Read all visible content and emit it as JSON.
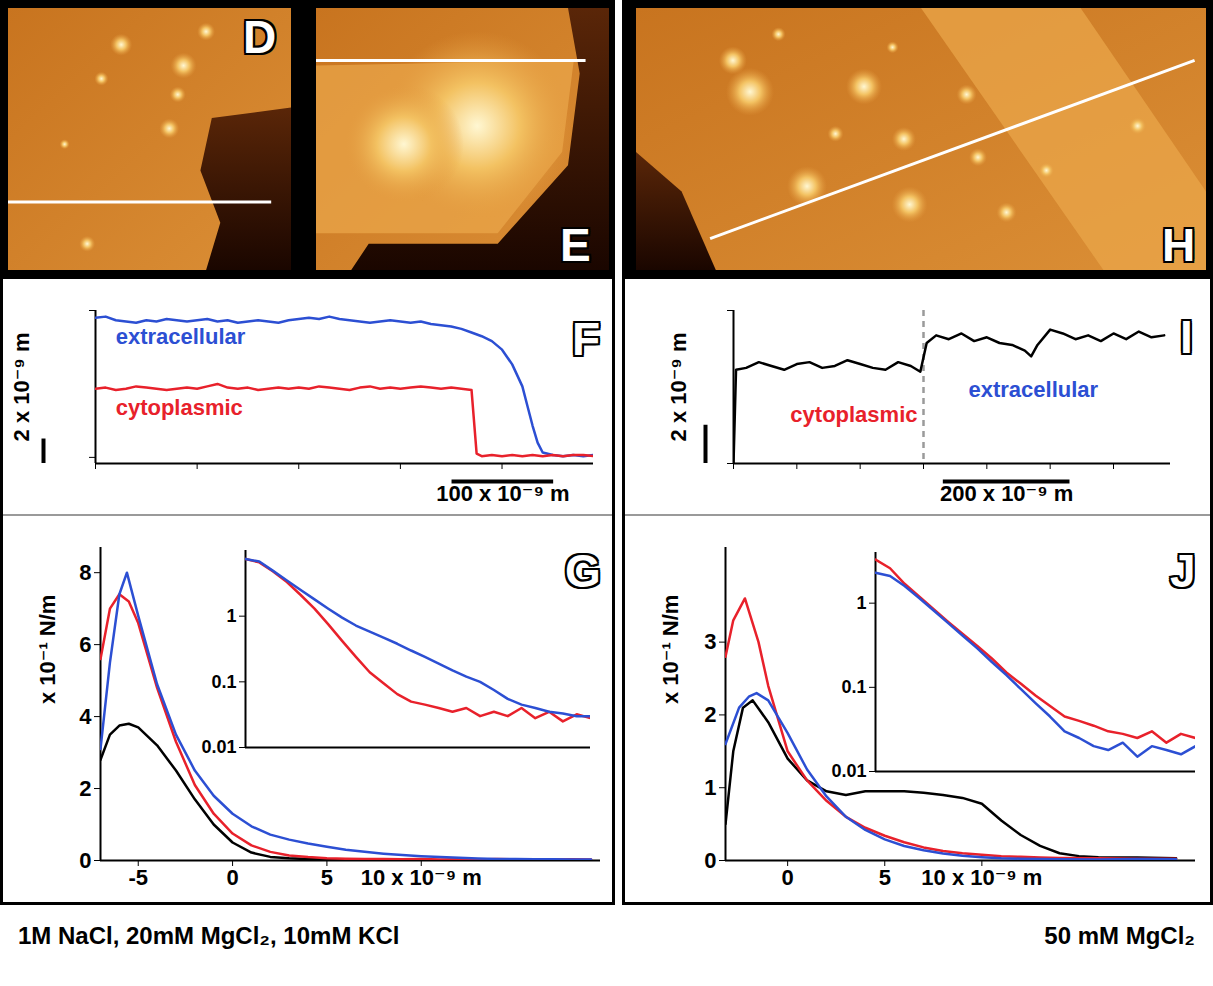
{
  "chart_data": [
    {
      "type": "image",
      "panel": "D"
    },
    {
      "type": "image",
      "panel": "E"
    },
    {
      "type": "image",
      "panel": "H"
    },
    {
      "type": "line",
      "panel": "F",
      "xlim": [
        0,
        490
      ],
      "xticks": [
        0,
        100,
        200,
        300,
        400
      ],
      "ylim": [
        -0.5,
        12
      ],
      "yticks": [
        0,
        12
      ],
      "tick_labels": false,
      "scale_bars": {
        "x": {
          "length": 100,
          "label": "100 x 10⁻⁹ m"
        },
        "y": {
          "length": 2,
          "label": "2 x 10⁻⁹ m"
        }
      },
      "series": [
        {
          "name": "extracellular",
          "color": "#2c4fd3",
          "x": [
            0,
            10,
            20,
            30,
            40,
            50,
            60,
            70,
            80,
            90,
            100,
            110,
            120,
            130,
            140,
            150,
            160,
            170,
            180,
            190,
            200,
            210,
            220,
            230,
            240,
            250,
            260,
            270,
            280,
            290,
            300,
            310,
            320,
            330,
            340,
            350,
            360,
            370,
            380,
            390,
            400,
            410,
            420,
            425,
            430,
            435,
            440,
            450,
            460,
            470,
            480,
            490
          ],
          "values": [
            11.4,
            11.5,
            11.2,
            11.1,
            11.0,
            11.2,
            11.1,
            11.3,
            11.2,
            11.1,
            11.2,
            11.3,
            11.1,
            11.2,
            11.0,
            11.1,
            11.2,
            11.1,
            11.0,
            11.2,
            11.3,
            11.4,
            11.3,
            11.5,
            11.3,
            11.2,
            11.1,
            11.0,
            11.1,
            11.2,
            11.1,
            11.0,
            11.1,
            10.9,
            10.8,
            10.7,
            10.5,
            10.2,
            9.9,
            9.5,
            8.8,
            7.6,
            5.8,
            4.2,
            2.6,
            1.2,
            0.4,
            0.2,
            0.1,
            0.2,
            0.1,
            0.2
          ]
        },
        {
          "name": "cytoplasmic",
          "color": "#e8212b",
          "x": [
            0,
            10,
            20,
            30,
            40,
            50,
            60,
            70,
            80,
            90,
            100,
            110,
            120,
            130,
            140,
            150,
            160,
            170,
            180,
            190,
            200,
            210,
            220,
            230,
            240,
            250,
            260,
            270,
            280,
            290,
            300,
            310,
            320,
            330,
            340,
            350,
            360,
            370,
            375,
            380,
            390,
            400,
            410,
            420,
            430,
            440,
            450,
            460,
            470,
            480,
            490
          ],
          "values": [
            5.6,
            5.7,
            5.5,
            5.6,
            5.8,
            5.7,
            5.6,
            5.5,
            5.6,
            5.7,
            5.6,
            5.8,
            6.0,
            5.7,
            5.6,
            5.7,
            5.5,
            5.6,
            5.7,
            5.6,
            5.7,
            5.6,
            5.8,
            5.7,
            5.6,
            5.5,
            5.7,
            5.8,
            5.6,
            5.7,
            5.6,
            5.7,
            5.8,
            5.7,
            5.6,
            5.7,
            5.6,
            5.5,
            0.3,
            0.1,
            0.2,
            0.1,
            0.2,
            0.1,
            0.2,
            0.1,
            0.2,
            0.1,
            0.2,
            0.2,
            0.1
          ]
        }
      ]
    },
    {
      "type": "line",
      "panel": "I",
      "xlim": [
        0,
        690
      ],
      "xticks": [
        0,
        100,
        200,
        300,
        400,
        500,
        600
      ],
      "ylim": [
        0,
        8
      ],
      "yticks": [
        0,
        8
      ],
      "tick_labels": false,
      "scale_bars": {
        "x": {
          "length": 200,
          "label": "200 x 10⁻⁹ m"
        },
        "y": {
          "length": 2,
          "label": "2 x 10⁻⁹ m"
        }
      },
      "divider_x": 300,
      "region_labels": [
        {
          "text": "cytoplasmic",
          "color": "#e8212b"
        },
        {
          "text": "extracellular",
          "color": "#2c4fd3"
        }
      ],
      "series": [
        {
          "color": "#000000",
          "x": [
            0,
            4,
            20,
            40,
            60,
            80,
            100,
            120,
            140,
            160,
            180,
            200,
            220,
            240,
            260,
            280,
            295,
            305,
            320,
            340,
            360,
            380,
            400,
            420,
            440,
            460,
            470,
            480,
            500,
            520,
            540,
            560,
            580,
            600,
            620,
            640,
            660,
            680
          ],
          "values": [
            0,
            4.9,
            5.0,
            5.3,
            5.1,
            4.9,
            5.2,
            5.3,
            5.0,
            5.1,
            5.4,
            5.2,
            5.0,
            4.9,
            5.3,
            5.1,
            4.8,
            6.3,
            6.7,
            6.5,
            6.8,
            6.4,
            6.6,
            6.3,
            6.2,
            5.9,
            5.6,
            6.2,
            7.0,
            6.8,
            6.5,
            6.7,
            6.4,
            6.8,
            6.5,
            6.9,
            6.6,
            6.7
          ]
        }
      ]
    },
    {
      "type": "line",
      "panel": "G",
      "ylabel": "x 10⁻¹ N/m",
      "xlim": [
        -7,
        19.5
      ],
      "xticks": [
        -5,
        0,
        5,
        {
          "value": 10,
          "label": "10 x 10⁻⁹ m"
        }
      ],
      "ylim": [
        0,
        8.7
      ],
      "yticks": [
        0,
        2,
        4,
        6,
        8
      ],
      "series": [
        {
          "color": "#000000",
          "x": [
            -7,
            -6.5,
            -6,
            -5.5,
            -5,
            -4,
            -3,
            -2,
            -1,
            0,
            1,
            2,
            3,
            4,
            5,
            6,
            8,
            10,
            12,
            14,
            16,
            19
          ],
          "values": [
            2.8,
            3.5,
            3.75,
            3.8,
            3.7,
            3.2,
            2.5,
            1.7,
            1.0,
            0.5,
            0.22,
            0.1,
            0.06,
            0.04,
            0.03,
            0.02,
            0.02,
            0.01,
            0.01,
            0.01,
            0.01,
            0.01
          ]
        },
        {
          "color": "#e8212b",
          "x": [
            -7,
            -6.5,
            -6,
            -5.5,
            -5,
            -4,
            -3,
            -2,
            -1,
            0,
            1,
            2,
            3,
            4,
            5,
            6,
            7,
            8,
            9,
            10,
            11,
            12,
            13,
            14,
            15,
            16,
            17,
            18,
            19
          ],
          "values": [
            5.6,
            7.0,
            7.4,
            7.2,
            6.6,
            4.8,
            3.3,
            2.1,
            1.3,
            0.75,
            0.42,
            0.24,
            0.14,
            0.095,
            0.065,
            0.05,
            0.045,
            0.04,
            0.035,
            0.04,
            0.03,
            0.035,
            0.03,
            0.04,
            0.028,
            0.035,
            0.025,
            0.032,
            0.028
          ]
        },
        {
          "color": "#2c4fd3",
          "x": [
            -7,
            -6.5,
            -6,
            -5.6,
            -5,
            -4,
            -3,
            -2,
            -1,
            0,
            1,
            2,
            3,
            4,
            5,
            6,
            7,
            8,
            9,
            10,
            11,
            12,
            13,
            14,
            15,
            16,
            17,
            18,
            19
          ],
          "values": [
            3.1,
            5.5,
            7.4,
            8.0,
            6.8,
            4.9,
            3.5,
            2.5,
            1.8,
            1.3,
            0.95,
            0.72,
            0.58,
            0.47,
            0.38,
            0.3,
            0.24,
            0.19,
            0.15,
            0.12,
            0.1,
            0.075,
            0.055,
            0.045,
            0.04,
            0.035,
            0.033,
            0.03,
            0.03
          ]
        }
      ],
      "inset": {
        "type": "line",
        "log": "y",
        "tick_labels": "y",
        "xlim": [
          -6,
          19
        ],
        "ylim": [
          0.01,
          10
        ],
        "yticks": [
          0.01,
          0.1,
          1
        ],
        "series": [
          {
            "color": "#e8212b",
            "x": [
              -6,
              -5,
              -4,
              -3,
              -2,
              -1,
              0,
              1,
              2,
              3,
              4,
              5,
              6,
              7,
              8,
              9,
              10,
              11,
              12,
              13,
              14,
              15,
              16,
              17,
              18,
              19
            ],
            "values": [
              7.4,
              6.6,
              4.8,
              3.3,
              2.1,
              1.3,
              0.75,
              0.42,
              0.24,
              0.14,
              0.095,
              0.065,
              0.05,
              0.045,
              0.04,
              0.035,
              0.04,
              0.03,
              0.035,
              0.03,
              0.04,
              0.028,
              0.035,
              0.025,
              0.032,
              0.028
            ]
          },
          {
            "color": "#2c4fd3",
            "x": [
              -6,
              -5,
              -4,
              -3,
              -2,
              -1,
              0,
              1,
              2,
              3,
              4,
              5,
              6,
              7,
              8,
              9,
              10,
              11,
              12,
              13,
              14,
              15,
              16,
              17,
              18,
              19
            ],
            "values": [
              7.4,
              6.8,
              4.9,
              3.5,
              2.5,
              1.8,
              1.3,
              0.95,
              0.72,
              0.58,
              0.47,
              0.38,
              0.3,
              0.24,
              0.19,
              0.15,
              0.12,
              0.1,
              0.075,
              0.055,
              0.045,
              0.04,
              0.035,
              0.033,
              0.03,
              0.03
            ]
          }
        ]
      }
    },
    {
      "type": "line",
      "panel": "J",
      "ylabel": "x 10⁻¹ N/m",
      "xlim": [
        -3.2,
        21
      ],
      "xticks": [
        0,
        5,
        {
          "value": 10,
          "label": "10 x 10⁻⁹ m"
        }
      ],
      "ylim": [
        0,
        4.3
      ],
      "yticks": [
        0,
        1,
        2,
        3
      ],
      "series": [
        {
          "color": "#000000",
          "x": [
            -3.2,
            -2.8,
            -2.3,
            -1.8,
            -1,
            0,
            1,
            2,
            3,
            4,
            5,
            6,
            7,
            8,
            9,
            10,
            11,
            12,
            13,
            14,
            15,
            16,
            18,
            20
          ],
          "values": [
            0.5,
            1.5,
            2.1,
            2.2,
            1.9,
            1.4,
            1.1,
            0.95,
            0.9,
            0.95,
            0.95,
            0.95,
            0.93,
            0.9,
            0.86,
            0.78,
            0.55,
            0.35,
            0.2,
            0.1,
            0.06,
            0.045,
            0.04,
            0.03
          ]
        },
        {
          "color": "#e8212b",
          "x": [
            -3.2,
            -2.8,
            -2.2,
            -1.5,
            -1,
            0,
            1,
            2,
            3,
            4,
            5,
            6,
            7,
            8,
            9,
            10,
            11,
            12,
            13,
            14,
            16,
            18,
            20
          ],
          "values": [
            2.8,
            3.3,
            3.6,
            3.0,
            2.4,
            1.5,
            1.1,
            0.82,
            0.6,
            0.45,
            0.34,
            0.25,
            0.18,
            0.13,
            0.1,
            0.08,
            0.06,
            0.05,
            0.04,
            0.035,
            0.03,
            0.025,
            0.025
          ]
        },
        {
          "color": "#2c4fd3",
          "x": [
            -3.2,
            -2.5,
            -2,
            -1.6,
            -1,
            0,
            1,
            2,
            3,
            4,
            5,
            6,
            7,
            8,
            9,
            10,
            11,
            12,
            13,
            14,
            16,
            18,
            20
          ],
          "values": [
            1.6,
            2.1,
            2.25,
            2.3,
            2.2,
            1.75,
            1.25,
            0.88,
            0.6,
            0.42,
            0.29,
            0.2,
            0.14,
            0.095,
            0.065,
            0.045,
            0.03,
            0.025,
            0.02,
            0.018,
            0.015,
            0.02,
            0.016
          ]
        }
      ],
      "inset": {
        "type": "line",
        "log": "y",
        "tick_labels": "y",
        "xlim": [
          -2,
          20
        ],
        "ylim": [
          0.01,
          4
        ],
        "yticks": [
          0.01,
          0.1,
          1
        ],
        "series": [
          {
            "color": "#e8212b",
            "x": [
              -2,
              -1,
              0,
              1,
              2,
              3,
              4,
              5,
              6,
              7,
              8,
              9,
              10,
              11,
              12,
              13,
              14,
              15,
              16,
              17,
              18,
              19,
              20
            ],
            "values": [
              3.3,
              2.6,
              1.7,
              1.2,
              0.85,
              0.6,
              0.43,
              0.31,
              0.22,
              0.15,
              0.11,
              0.08,
              0.06,
              0.045,
              0.04,
              0.035,
              0.03,
              0.028,
              0.025,
              0.03,
              0.022,
              0.028,
              0.025
            ]
          },
          {
            "color": "#2c4fd3",
            "x": [
              -2,
              -1,
              0,
              1,
              2,
              3,
              4,
              5,
              6,
              7,
              8,
              9,
              10,
              11,
              12,
              13,
              14,
              15,
              16,
              17,
              18,
              19,
              20
            ],
            "values": [
              2.3,
              2.1,
              1.6,
              1.15,
              0.82,
              0.58,
              0.41,
              0.29,
              0.2,
              0.14,
              0.095,
              0.065,
              0.045,
              0.03,
              0.025,
              0.02,
              0.018,
              0.022,
              0.015,
              0.02,
              0.018,
              0.016,
              0.02
            ]
          }
        ]
      }
    }
  ],
  "captions": [
    "1M NaCl, 20mM MgCl₂, 10mM KCl",
    "50 mM MgCl₂"
  ]
}
